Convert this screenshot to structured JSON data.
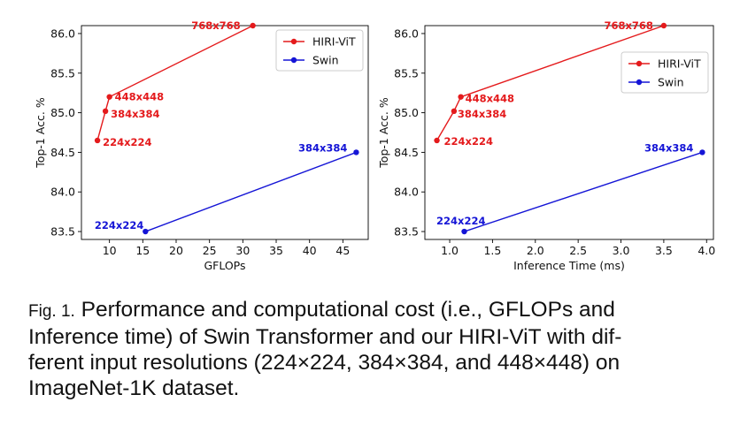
{
  "chart_data": [
    {
      "type": "line",
      "xlabel": "GFLOPs",
      "ylabel": "Top-1 Acc. %",
      "xlim": [
        5.8,
        48.8
      ],
      "ylim": [
        83.4,
        86.1
      ],
      "xticks": [
        10,
        15,
        20,
        25,
        30,
        35,
        40,
        45
      ],
      "yticks": [
        83.5,
        84.0,
        84.5,
        85.0,
        85.5,
        86.0
      ],
      "xtick_labels": [
        "10",
        "15",
        "20",
        "25",
        "30",
        "35",
        "40",
        "45"
      ],
      "ytick_labels": [
        "83.5",
        "84.0",
        "84.5",
        "85.0",
        "85.5",
        "86.0"
      ],
      "legend_position": "top-right",
      "grid": false,
      "series": [
        {
          "name": "HIRI-ViT",
          "color": "#e41a1c",
          "x": [
            8.2,
            9.4,
            10.0,
            31.5
          ],
          "y": [
            84.65,
            85.02,
            85.2,
            86.1
          ],
          "labels": [
            "224x224",
            "384x384",
            "448x448",
            "768x768"
          ]
        },
        {
          "name": "Swin",
          "color": "#1515d6",
          "x": [
            15.4,
            47.0
          ],
          "y": [
            83.5,
            84.5
          ],
          "labels": [
            "224x224",
            "384x384"
          ]
        }
      ]
    },
    {
      "type": "line",
      "xlabel": "Inference Time (ms)",
      "ylabel": "Top-1 Acc. %",
      "xlim": [
        0.71,
        4.08
      ],
      "ylim": [
        83.4,
        86.1
      ],
      "xticks": [
        1.0,
        1.5,
        2.0,
        2.5,
        3.0,
        3.5,
        4.0
      ],
      "yticks": [
        83.5,
        84.0,
        84.5,
        85.0,
        85.5,
        86.0
      ],
      "xtick_labels": [
        "1.0",
        "1.5",
        "2.0",
        "2.5",
        "3.0",
        "3.5",
        "4.0"
      ],
      "ytick_labels": [
        "83.5",
        "84.0",
        "84.5",
        "85.0",
        "85.5",
        "86.0"
      ],
      "legend_position": "upper-right",
      "grid": false,
      "series": [
        {
          "name": "HIRI-ViT",
          "color": "#e41a1c",
          "x": [
            0.85,
            1.05,
            1.13,
            3.5
          ],
          "y": [
            84.65,
            85.02,
            85.2,
            86.1
          ],
          "labels": [
            "224x224",
            "384x384",
            "448x448",
            "768x768"
          ]
        },
        {
          "name": "Swin",
          "color": "#1515d6",
          "x": [
            1.17,
            3.95
          ],
          "y": [
            83.5,
            84.5
          ],
          "labels": [
            "224x224",
            "384x384"
          ]
        }
      ]
    }
  ],
  "caption": {
    "fig_label": "Fig. 1.",
    "lines": [
      "Performance and computational cost (i.e., GFLOPs and",
      "Inference time) of Swin Transformer and our HIRI-ViT with dif-",
      "ferent input resolutions (224×224, 384×384, and 448×448) on",
      "ImageNet-1K dataset."
    ]
  }
}
